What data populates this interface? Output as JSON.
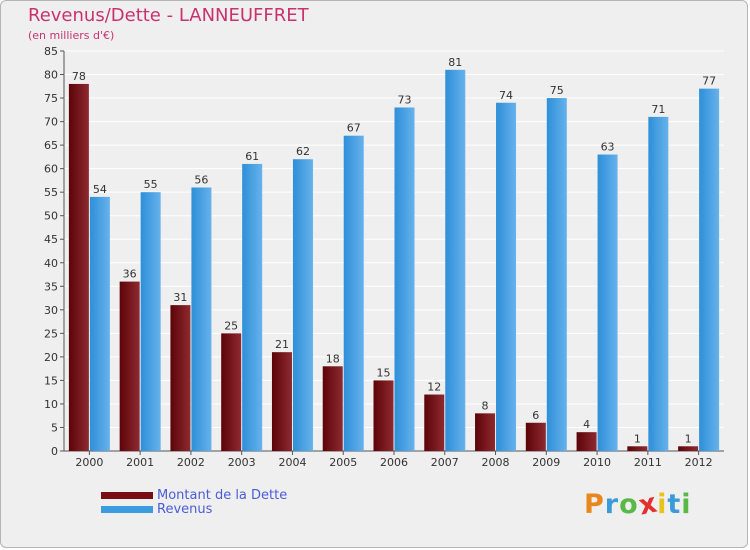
{
  "header": {
    "title": "Revenus/Dette - LANNEUFFRET",
    "subtitle": "(en milliers d'€)"
  },
  "colors": {
    "dette": "#7a0c14",
    "revenus": "#3c9ce0",
    "grid": "#ffffff",
    "background": "#efefef",
    "title": "#c8336b"
  },
  "chart_data": {
    "type": "bar",
    "title": "Revenus/Dette - LANNEUFFRET",
    "subtitle": "(en milliers d'€)",
    "xlabel": "",
    "ylabel": "",
    "ylim": [
      0,
      85
    ],
    "yticks": [
      0,
      5,
      10,
      15,
      20,
      25,
      30,
      35,
      40,
      45,
      50,
      55,
      60,
      65,
      70,
      75,
      80,
      85
    ],
    "grid": true,
    "legend_position": "bottom-left",
    "categories": [
      "2000",
      "2001",
      "2002",
      "2003",
      "2004",
      "2005",
      "2006",
      "2007",
      "2008",
      "2009",
      "2010",
      "2011",
      "2012"
    ],
    "series": [
      {
        "name": "Montant de la Dette",
        "color": "#7a0c14",
        "values": [
          78,
          36,
          31,
          25,
          21,
          18,
          15,
          12,
          8,
          6,
          4,
          1,
          1
        ]
      },
      {
        "name": "Revenus",
        "color": "#3c9ce0",
        "values": [
          54,
          55,
          56,
          61,
          62,
          67,
          73,
          81,
          74,
          75,
          63,
          71,
          77
        ]
      }
    ]
  },
  "legend": {
    "items": [
      {
        "label": "Montant de la Dette",
        "color": "#7a0c14"
      },
      {
        "label": "Revenus",
        "color": "#3c9ce0"
      }
    ]
  },
  "logo": {
    "letters": [
      "P",
      "r",
      "o",
      "x",
      "i",
      "t",
      "i"
    ],
    "colors": [
      "#e8871e",
      "#3a9bd8",
      "#59b947",
      "#e0302f",
      "#e8c31e",
      "#3a9bd8",
      "#59b947"
    ]
  }
}
